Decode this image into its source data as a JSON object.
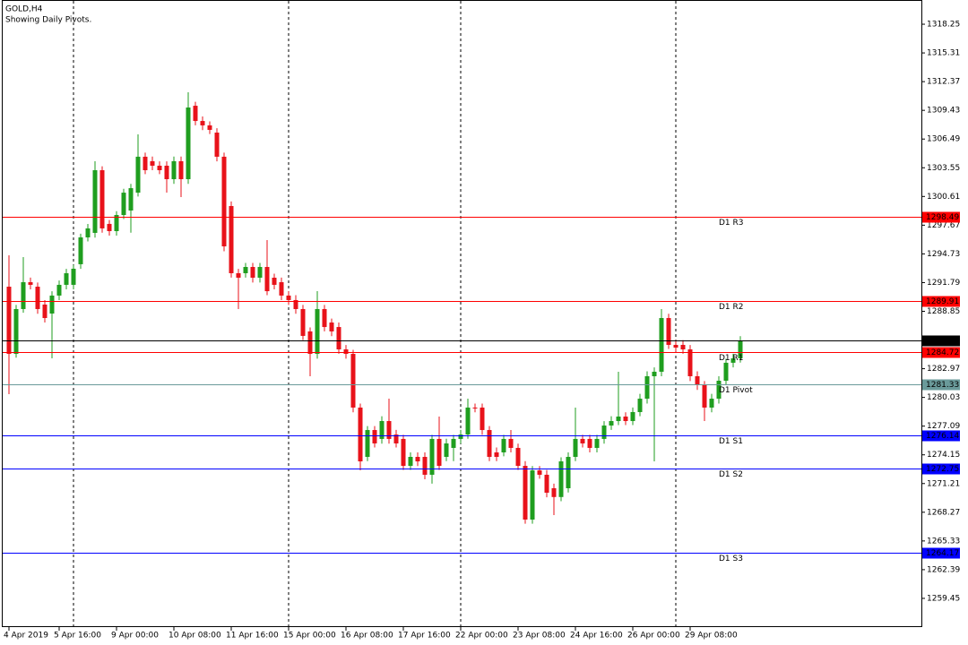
{
  "chart_data": {
    "type": "candlestick",
    "title": "GOLD,H4",
    "subtitle": "Showing Daily Pivots.",
    "up_color": "#1f9e1f",
    "down_color": "#e8121a",
    "ylim": [
      1256.51,
      1320.73
    ],
    "yticks": [
      1318.25,
      1315.31,
      1312.37,
      1309.43,
      1306.49,
      1303.55,
      1300.61,
      1297.67,
      1294.73,
      1291.79,
      1288.85,
      1282.97,
      1280.03,
      1277.09,
      1274.15,
      1271.21,
      1268.27,
      1265.33,
      1262.39,
      1259.45
    ],
    "categories": [
      "4 Apr 2019",
      null,
      null,
      null,
      null,
      null,
      null,
      "5 Apr 16:00",
      null,
      null,
      null,
      null,
      null,
      null,
      null,
      "9 Apr 00:00",
      null,
      null,
      null,
      null,
      null,
      null,
      null,
      "10 Apr 08:00",
      null,
      null,
      null,
      null,
      null,
      null,
      null,
      "11 Apr 16:00",
      null,
      null,
      null,
      null,
      null,
      null,
      null,
      "15 Apr 00:00",
      null,
      null,
      null,
      null,
      null,
      null,
      null,
      "16 Apr 08:00",
      null,
      null,
      null,
      null,
      null,
      null,
      null,
      "17 Apr 16:00",
      null,
      null,
      null,
      null,
      null,
      null,
      null,
      "22 Apr 00:00",
      null,
      null,
      null,
      null,
      null,
      null,
      null,
      "23 Apr 08:00",
      null,
      null,
      null,
      null,
      null,
      null,
      null,
      "24 Apr 16:00",
      null,
      null,
      null,
      null,
      null,
      null,
      null,
      "26 Apr 00:00",
      null,
      null,
      null,
      null,
      null,
      null,
      null,
      "29 Apr 08:00",
      null,
      null,
      null,
      null,
      null,
      null,
      null
    ],
    "open": [
      1291.37,
      1284.49,
      1289.08,
      1291.83,
      1291.37,
      1289.54,
      1288.62,
      1290.46,
      1291.56,
      1291.56,
      1293.67,
      1296.42,
      1296.88,
      1303.3,
      1297.8,
      1297.06,
      1298.71,
      1299.17,
      1301.0,
      1304.68,
      1304.22,
      1303.76,
      1303.76,
      1302.38,
      1304.22,
      1302.38,
      1309.9,
      1308.34,
      1307.89,
      1307.15,
      1304.68,
      1299.63,
      1292.75,
      1292.75,
      1293.39,
      1292.29,
      1293.39,
      1292.29,
      1291.83,
      1290.46,
      1290.0,
      1289.08,
      1286.79,
      1284.49,
      1289.08,
      1287.7,
      1287.24,
      1284.95,
      1284.49,
      1278.99,
      1273.94,
      1276.69,
      1275.78,
      1277.61,
      1276.23,
      1275.78,
      1273.02,
      1273.94,
      1273.94,
      1272.11,
      1275.78,
      1273.94,
      1274.86,
      1275.78,
      1276.23,
      1278.99,
      1278.99,
      1276.69,
      1274.4,
      1274.4,
      1275.78,
      1274.86,
      1273.02,
      1267.52,
      1272.56,
      1272.11,
      1270.73,
      1269.83,
      1270.73,
      1273.94,
      1275.78,
      1275.78,
      1274.86,
      1275.78,
      1277.15,
      1277.61,
      1278.07,
      1277.61,
      1278.53,
      1279.9,
      1282.2,
      1282.66,
      1288.16,
      1285.41,
      1285.41,
      1284.95,
      1282.2,
      1281.28,
      1278.99,
      1279.9,
      1281.74,
      1283.58,
      1284.03
    ],
    "high": [
      1294.58,
      1289.5,
      1294.4,
      1292.3,
      1291.8,
      1290.0,
      1290.9,
      1292.0,
      1293.2,
      1293.6,
      1296.8,
      1297.8,
      1304.22,
      1303.7,
      1298.2,
      1299.1,
      1301.4,
      1301.9,
      1306.97,
      1305.1,
      1304.7,
      1304.2,
      1304.2,
      1304.7,
      1304.7,
      1311.28,
      1310.3,
      1308.8,
      1308.3,
      1307.6,
      1305.1,
      1300.1,
      1293.2,
      1293.8,
      1293.8,
      1293.8,
      1296.14,
      1292.7,
      1292.3,
      1290.9,
      1290.5,
      1289.5,
      1287.2,
      1290.91,
      1289.5,
      1288.1,
      1287.7,
      1285.4,
      1284.9,
      1279.4,
      1277.1,
      1277.1,
      1278.1,
      1279.9,
      1276.7,
      1276.2,
      1274.4,
      1274.4,
      1274.4,
      1276.2,
      1278.07,
      1275.8,
      1276.2,
      1276.7,
      1279.9,
      1279.4,
      1279.4,
      1277.1,
      1274.9,
      1276.2,
      1276.69,
      1275.3,
      1273.5,
      1273.0,
      1273.0,
      1272.6,
      1271.2,
      1273.9,
      1274.4,
      1278.99,
      1276.2,
      1276.2,
      1276.2,
      1277.6,
      1278.1,
      1282.66,
      1278.5,
      1279.0,
      1280.4,
      1282.7,
      1283.1,
      1289.08,
      1288.6,
      1285.9,
      1285.9,
      1285.4,
      1282.7,
      1281.7,
      1280.4,
      1282.2,
      1284.0,
      1284.5,
      1286.3
    ],
    "low": [
      1280.36,
      1284.1,
      1288.7,
      1291.1,
      1288.6,
      1287.7,
      1284.03,
      1290.0,
      1291.1,
      1291.1,
      1293.2,
      1296.0,
      1296.4,
      1296.9,
      1296.6,
      1296.6,
      1298.3,
      1296.9,
      1300.6,
      1302.9,
      1303.3,
      1302.9,
      1301.0,
      1301.9,
      1300.55,
      1301.9,
      1307.9,
      1307.4,
      1307.0,
      1304.2,
      1295.0,
      1292.3,
      1289.08,
      1292.3,
      1291.8,
      1291.8,
      1290.5,
      1291.1,
      1290.0,
      1289.5,
      1288.6,
      1285.9,
      1282.2,
      1284.0,
      1286.8,
      1286.3,
      1284.5,
      1284.0,
      1278.5,
      1272.56,
      1273.5,
      1274.9,
      1275.3,
      1275.3,
      1274.9,
      1272.6,
      1272.6,
      1273.0,
      1271.65,
      1271.2,
      1272.6,
      1273.5,
      1273.5,
      1275.3,
      1275.8,
      1278.5,
      1276.2,
      1273.5,
      1273.5,
      1274.0,
      1274.4,
      1272.6,
      1267.1,
      1267.1,
      1271.7,
      1269.8,
      1267.98,
      1269.4,
      1270.3,
      1273.5,
      1274.9,
      1274.4,
      1274.4,
      1275.3,
      1276.7,
      1277.2,
      1277.2,
      1277.2,
      1278.1,
      1279.4,
      1273.48,
      1282.2,
      1285.0,
      1284.7,
      1284.5,
      1281.7,
      1280.8,
      1277.61,
      1278.5,
      1279.4,
      1281.3,
      1283.1,
      1283.6
    ],
    "close": [
      1284.49,
      1289.08,
      1291.83,
      1291.56,
      1289.08,
      1288.16,
      1290.46,
      1291.56,
      1292.75,
      1293.21,
      1296.42,
      1297.34,
      1303.3,
      1297.34,
      1297.06,
      1298.71,
      1301.0,
      1301.46,
      1304.68,
      1303.3,
      1303.76,
      1303.3,
      1302.38,
      1304.22,
      1302.38,
      1309.72,
      1308.34,
      1307.89,
      1307.43,
      1304.68,
      1295.5,
      1292.75,
      1292.29,
      1293.39,
      1292.29,
      1293.39,
      1290.91,
      1291.56,
      1290.46,
      1290.0,
      1289.08,
      1286.33,
      1284.49,
      1289.08,
      1287.24,
      1286.79,
      1284.95,
      1284.49,
      1278.99,
      1273.48,
      1276.69,
      1275.32,
      1277.61,
      1275.78,
      1275.32,
      1273.02,
      1273.94,
      1273.48,
      1272.11,
      1275.78,
      1273.02,
      1275.32,
      1275.78,
      1276.23,
      1278.99,
      1278.9,
      1276.69,
      1273.94,
      1273.94,
      1275.78,
      1274.86,
      1273.02,
      1267.52,
      1272.56,
      1272.11,
      1270.27,
      1269.83,
      1273.48,
      1273.94,
      1275.78,
      1275.32,
      1274.86,
      1275.78,
      1277.15,
      1277.61,
      1278.07,
      1277.61,
      1278.53,
      1279.9,
      1282.2,
      1282.66,
      1288.16,
      1285.41,
      1285.13,
      1284.95,
      1282.2,
      1281.28,
      1278.99,
      1279.9,
      1281.74,
      1283.58,
      1284.03,
      1285.83
    ],
    "levels": [
      {
        "name": "D1 R3",
        "value": 1298.49,
        "color": "#ff0000"
      },
      {
        "name": "D1 R2",
        "value": 1289.91,
        "color": "#ff0000"
      },
      {
        "name": "D1 R1",
        "value": 1284.72,
        "color": "#ff0000"
      },
      {
        "name": "D1 Pivot",
        "value": 1281.33,
        "color": "#6a9a9a"
      },
      {
        "name": "D1 S1",
        "value": 1276.14,
        "color": "#0000ff"
      },
      {
        "name": "D1 S2",
        "value": 1272.75,
        "color": "#0000ff"
      },
      {
        "name": "D1 S3",
        "value": 1264.17,
        "color": "#0000ff"
      }
    ],
    "last_price": 1285.83
  }
}
